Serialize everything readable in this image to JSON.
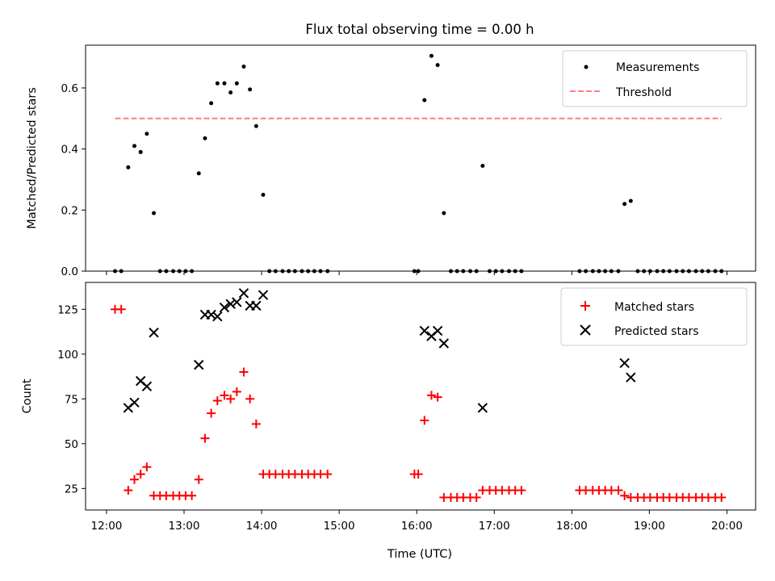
{
  "chart_data": [
    {
      "type": "scatter",
      "title": "Flux total observing time = 0.00 h",
      "ylabel": "Matched/Predicted stars",
      "xlim": [
        11.73,
        20.37
      ],
      "ylim": [
        0,
        0.74
      ],
      "yticks": [
        0.0,
        0.2,
        0.4,
        0.6
      ],
      "ytick_labels": [
        "0.0",
        "0.2",
        "0.4",
        "0.6"
      ],
      "xticks": [
        12,
        13,
        14,
        15,
        16,
        17,
        18,
        19,
        20
      ],
      "grid": false,
      "legend_position": "top-right",
      "series": [
        {
          "name": "Measurements",
          "marker": "dot",
          "color": "#000000",
          "x": [
            12.11,
            12.19,
            12.28,
            12.36,
            12.44,
            12.52,
            12.61,
            12.69,
            12.77,
            12.86,
            12.94,
            13.02,
            13.1,
            13.19,
            13.27,
            13.35,
            13.43,
            13.52,
            13.6,
            13.68,
            13.77,
            13.85,
            13.93,
            14.02,
            14.1,
            14.18,
            14.27,
            14.35,
            14.43,
            14.52,
            14.6,
            14.68,
            14.76,
            14.85,
            15.97,
            16.02,
            16.1,
            16.19,
            16.27,
            16.35,
            16.44,
            16.52,
            16.6,
            16.69,
            16.77,
            16.85,
            16.94,
            17.02,
            17.1,
            17.19,
            17.27,
            17.35,
            18.1,
            18.18,
            18.27,
            18.35,
            18.43,
            18.51,
            18.6,
            18.68,
            18.76,
            18.85,
            18.93,
            19.01,
            19.1,
            19.18,
            19.26,
            19.35,
            19.43,
            19.51,
            19.6,
            19.68,
            19.76,
            19.85,
            19.93
          ],
          "y": [
            0,
            0,
            0.34,
            0.41,
            0.39,
            0.45,
            0.19,
            0,
            0,
            0,
            0,
            0,
            0,
            0.32,
            0.435,
            0.55,
            0.615,
            0.615,
            0.585,
            0.615,
            0.67,
            0.595,
            0.475,
            0.25,
            0,
            0,
            0,
            0,
            0,
            0,
            0,
            0,
            0,
            0,
            0,
            0,
            0.56,
            0.705,
            0.675,
            0.19,
            0,
            0,
            0,
            0,
            0,
            0.345,
            0,
            0,
            0,
            0,
            0,
            0,
            0,
            0,
            0,
            0,
            0,
            0,
            0,
            0.22,
            0.23,
            0,
            0,
            0,
            0,
            0,
            0,
            0,
            0,
            0,
            0,
            0,
            0,
            0,
            0
          ]
        },
        {
          "name": "Threshold",
          "style": "dashed",
          "color": "#ff7f7f",
          "x": [
            12.11,
            19.93
          ],
          "y": [
            0.5,
            0.5
          ]
        }
      ]
    },
    {
      "type": "scatter",
      "xlabel": "Time (UTC)",
      "ylabel": "Count",
      "xlim": [
        11.73,
        20.37
      ],
      "ylim": [
        13,
        140
      ],
      "yticks": [
        25,
        50,
        75,
        100,
        125
      ],
      "xticks": [
        12,
        13,
        14,
        15,
        16,
        17,
        18,
        19,
        20
      ],
      "xtick_labels": [
        "12:00",
        "13:00",
        "14:00",
        "15:00",
        "16:00",
        "17:00",
        "18:00",
        "19:00",
        "20:00"
      ],
      "grid": false,
      "legend_position": "top-right",
      "series": [
        {
          "name": "Matched stars",
          "marker": "plus",
          "color": "#ff0000",
          "x": [
            12.11,
            12.19,
            12.28,
            12.36,
            12.44,
            12.52,
            12.61,
            12.69,
            12.77,
            12.86,
            12.94,
            13.02,
            13.1,
            13.19,
            13.27,
            13.35,
            13.43,
            13.52,
            13.6,
            13.68,
            13.77,
            13.85,
            13.93,
            14.02,
            14.1,
            14.18,
            14.27,
            14.35,
            14.43,
            14.52,
            14.6,
            14.68,
            14.76,
            14.85,
            15.97,
            16.02,
            16.1,
            16.19,
            16.27,
            16.35,
            16.44,
            16.52,
            16.6,
            16.69,
            16.77,
            16.85,
            16.94,
            17.02,
            17.1,
            17.19,
            17.27,
            17.35,
            18.1,
            18.18,
            18.27,
            18.35,
            18.43,
            18.51,
            18.6,
            18.68,
            18.76,
            18.85,
            18.93,
            19.01,
            19.1,
            19.18,
            19.26,
            19.35,
            19.43,
            19.51,
            19.6,
            19.68,
            19.76,
            19.85,
            19.93
          ],
          "y": [
            125,
            125,
            24,
            30,
            33,
            37,
            21,
            21,
            21,
            21,
            21,
            21,
            21,
            30,
            53,
            67,
            74,
            77,
            75,
            79,
            90,
            75,
            61,
            33,
            33,
            33,
            33,
            33,
            33,
            33,
            33,
            33,
            33,
            33,
            33,
            33,
            63,
            77,
            76,
            20,
            20,
            20,
            20,
            20,
            20,
            24,
            24,
            24,
            24,
            24,
            24,
            24,
            24,
            24,
            24,
            24,
            24,
            24,
            24,
            21,
            20,
            20,
            20,
            20,
            20,
            20,
            20,
            20,
            20,
            20,
            20,
            20,
            20,
            20,
            20
          ]
        },
        {
          "name": "Predicted stars",
          "marker": "x",
          "color": "#000000",
          "x": [
            12.28,
            12.36,
            12.44,
            12.52,
            12.61,
            13.19,
            13.27,
            13.35,
            13.43,
            13.52,
            13.6,
            13.68,
            13.77,
            13.85,
            13.93,
            14.02,
            16.1,
            16.19,
            16.27,
            16.35,
            16.85,
            18.68,
            18.76
          ],
          "y": [
            70,
            73,
            85,
            82,
            112,
            94,
            122,
            122,
            121,
            126,
            128,
            129,
            134,
            127,
            127,
            133,
            113,
            110,
            113,
            106,
            70,
            95,
            87
          ]
        }
      ]
    }
  ]
}
